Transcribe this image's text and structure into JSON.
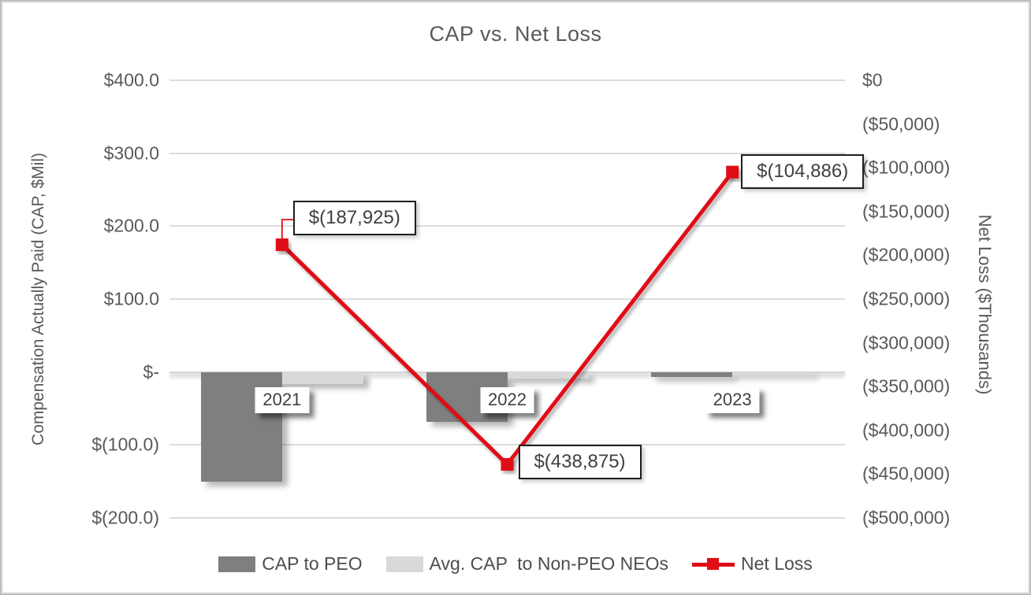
{
  "title": "CAP vs. Net Loss",
  "left_axis": {
    "title": "Compensation Actually Paid (CAP, $Mil)",
    "ticks": [
      {
        "label": "$400.0",
        "value": 400
      },
      {
        "label": "$300.0",
        "value": 300
      },
      {
        "label": "$200.0",
        "value": 200
      },
      {
        "label": "$100.0",
        "value": 100
      },
      {
        "label": "$-",
        "value": 0
      },
      {
        "label": "$(100.0)",
        "value": -100
      },
      {
        "label": "$(200.0)",
        "value": -200
      }
    ]
  },
  "right_axis": {
    "title": "Net Loss ($Thousands)",
    "ticks": [
      {
        "label": "$0",
        "value": 0
      },
      {
        "label": "($50,000)",
        "value": -50000
      },
      {
        "label": "($100,000)",
        "value": -100000
      },
      {
        "label": "($150,000)",
        "value": -150000
      },
      {
        "label": "($200,000)",
        "value": -200000
      },
      {
        "label": "($250,000)",
        "value": -250000
      },
      {
        "label": "($300,000)",
        "value": -300000
      },
      {
        "label": "($350,000)",
        "value": -350000
      },
      {
        "label": "($400,000)",
        "value": -400000
      },
      {
        "label": "($450,000)",
        "value": -450000
      },
      {
        "label": "($500,000)",
        "value": -500000
      }
    ]
  },
  "chart_data": {
    "type": "bar",
    "subtype": "combo-clustered-bar-plus-line",
    "title": "CAP vs. Net Loss",
    "categories": [
      "2021",
      "2022",
      "2023"
    ],
    "series": [
      {
        "name": "CAP to PEO",
        "type": "bar",
        "axis": "left",
        "color": "#7f7f7f",
        "values": [
          -150,
          -68,
          -7
        ]
      },
      {
        "name": "Avg. CAP  to Non-PEO NEOs",
        "type": "bar",
        "axis": "left",
        "color": "#d9d9d9",
        "values": [
          -17,
          -9,
          -4
        ]
      },
      {
        "name": "Net Loss",
        "type": "line",
        "axis": "right",
        "color": "#e00d16",
        "values": [
          -187925,
          -438875,
          -104886
        ],
        "point_labels": [
          "$(187,925)",
          "$(438,875)",
          "$(104,886)"
        ]
      }
    ],
    "xlabel": "",
    "ylabel_left": "Compensation Actually Paid (CAP, $Mil)",
    "ylabel_right": "Net Loss ($Thousands)",
    "left_ylim": [
      -200,
      400
    ],
    "right_ylim": [
      -500000,
      0
    ],
    "grid": true,
    "legend_position": "bottom"
  },
  "colors": {
    "bar_dark": "#7f7f7f",
    "bar_light": "#d9d9d9",
    "line_red": "#e00d16",
    "gridline": "#dcdcdc",
    "axis_text": "#595959",
    "label_text": "#404040"
  }
}
